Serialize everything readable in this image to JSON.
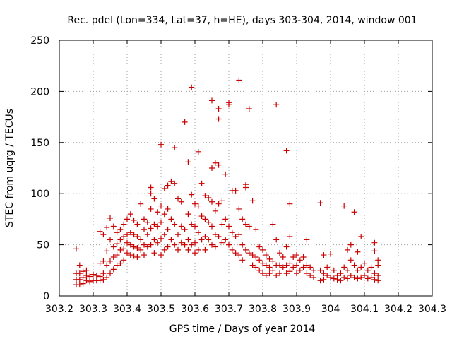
{
  "chart_data": {
    "type": "scatter",
    "title": "Rec. pdel (Lon=334, Lat=37, h=HE), days 303-304, 2014, window 001",
    "xlabel": "GPS time / Days of year 2014",
    "ylabel": "STEC from uqrg / TECUs",
    "xlim": [
      303.2,
      304.3
    ],
    "ylim": [
      0,
      250
    ],
    "xticks": [
      "303.2",
      "303.3",
      "303.4",
      "303.5",
      "303.6",
      "303.7",
      "303.8",
      "303.9",
      "304",
      "304.1",
      "304.2",
      "304.3"
    ],
    "yticks": [
      "0",
      "50",
      "100",
      "150",
      "200",
      "250"
    ],
    "grid": true,
    "marker": "plus",
    "series_color": "#cc0000",
    "series": [
      {
        "name": "STEC",
        "points": [
          [
            303.25,
            46
          ],
          [
            303.25,
            22
          ],
          [
            303.25,
            16
          ],
          [
            303.25,
            11
          ],
          [
            303.26,
            30
          ],
          [
            303.26,
            22
          ],
          [
            303.26,
            16
          ],
          [
            303.26,
            11
          ],
          [
            303.27,
            24
          ],
          [
            303.27,
            18
          ],
          [
            303.27,
            12
          ],
          [
            303.28,
            25
          ],
          [
            303.28,
            20
          ],
          [
            303.28,
            15
          ],
          [
            303.29,
            19
          ],
          [
            303.29,
            14
          ],
          [
            303.3,
            21
          ],
          [
            303.3,
            15
          ],
          [
            303.31,
            20
          ],
          [
            303.31,
            15
          ],
          [
            303.32,
            63
          ],
          [
            303.32,
            32
          ],
          [
            303.32,
            19
          ],
          [
            303.32,
            15
          ],
          [
            303.33,
            60
          ],
          [
            303.33,
            34
          ],
          [
            303.33,
            22
          ],
          [
            303.33,
            16
          ],
          [
            303.34,
            67
          ],
          [
            303.34,
            44
          ],
          [
            303.34,
            30
          ],
          [
            303.34,
            18
          ],
          [
            303.35,
            76
          ],
          [
            303.35,
            55
          ],
          [
            303.35,
            34
          ],
          [
            303.35,
            22
          ],
          [
            303.36,
            68
          ],
          [
            303.36,
            48
          ],
          [
            303.36,
            38
          ],
          [
            303.36,
            26
          ],
          [
            303.37,
            62
          ],
          [
            303.37,
            51
          ],
          [
            303.37,
            40
          ],
          [
            303.37,
            30
          ],
          [
            303.38,
            65
          ],
          [
            303.38,
            55
          ],
          [
            303.38,
            45
          ],
          [
            303.38,
            32
          ],
          [
            303.39,
            70
          ],
          [
            303.39,
            58
          ],
          [
            303.39,
            46
          ],
          [
            303.39,
            35
          ],
          [
            303.4,
            75
          ],
          [
            303.4,
            60
          ],
          [
            303.4,
            52
          ],
          [
            303.4,
            42
          ],
          [
            303.41,
            80
          ],
          [
            303.41,
            62
          ],
          [
            303.41,
            50
          ],
          [
            303.41,
            40
          ],
          [
            303.42,
            74
          ],
          [
            303.42,
            60
          ],
          [
            303.42,
            48
          ],
          [
            303.42,
            39
          ],
          [
            303.43,
            70
          ],
          [
            303.43,
            58
          ],
          [
            303.43,
            47
          ],
          [
            303.43,
            38
          ],
          [
            303.44,
            90
          ],
          [
            303.44,
            55
          ],
          [
            303.44,
            45
          ],
          [
            303.45,
            75
          ],
          [
            303.45,
            65
          ],
          [
            303.45,
            50
          ],
          [
            303.45,
            40
          ],
          [
            303.46,
            72
          ],
          [
            303.46,
            60
          ],
          [
            303.46,
            48
          ],
          [
            303.47,
            106
          ],
          [
            303.47,
            100
          ],
          [
            303.47,
            85
          ],
          [
            303.47,
            66
          ],
          [
            303.47,
            50
          ],
          [
            303.48,
            95
          ],
          [
            303.48,
            70
          ],
          [
            303.48,
            55
          ],
          [
            303.48,
            42
          ],
          [
            303.49,
            82
          ],
          [
            303.49,
            68
          ],
          [
            303.49,
            52
          ],
          [
            303.5,
            148
          ],
          [
            303.5,
            88
          ],
          [
            303.5,
            72
          ],
          [
            303.5,
            56
          ],
          [
            303.5,
            40
          ],
          [
            303.51,
            105
          ],
          [
            303.51,
            80
          ],
          [
            303.51,
            60
          ],
          [
            303.51,
            45
          ],
          [
            303.52,
            108
          ],
          [
            303.52,
            85
          ],
          [
            303.52,
            65
          ],
          [
            303.52,
            48
          ],
          [
            303.53,
            112
          ],
          [
            303.53,
            75
          ],
          [
            303.53,
            55
          ],
          [
            303.54,
            145
          ],
          [
            303.54,
            110
          ],
          [
            303.54,
            70
          ],
          [
            303.54,
            50
          ],
          [
            303.55,
            95
          ],
          [
            303.55,
            60
          ],
          [
            303.55,
            45
          ],
          [
            303.56,
            92
          ],
          [
            303.56,
            68
          ],
          [
            303.56,
            52
          ],
          [
            303.57,
            170
          ],
          [
            303.57,
            65
          ],
          [
            303.57,
            50
          ],
          [
            303.58,
            131
          ],
          [
            303.58,
            80
          ],
          [
            303.58,
            55
          ],
          [
            303.58,
            45
          ],
          [
            303.59,
            204
          ],
          [
            303.59,
            99
          ],
          [
            303.59,
            70
          ],
          [
            303.59,
            50
          ],
          [
            303.6,
            90
          ],
          [
            303.6,
            68
          ],
          [
            303.6,
            52
          ],
          [
            303.6,
            42
          ],
          [
            303.61,
            141
          ],
          [
            303.61,
            88
          ],
          [
            303.61,
            62
          ],
          [
            303.61,
            45
          ],
          [
            303.62,
            110
          ],
          [
            303.62,
            78
          ],
          [
            303.62,
            55
          ],
          [
            303.63,
            98
          ],
          [
            303.63,
            75
          ],
          [
            303.63,
            58
          ],
          [
            303.63,
            45
          ],
          [
            303.64,
            96
          ],
          [
            303.64,
            72
          ],
          [
            303.64,
            55
          ],
          [
            303.65,
            191
          ],
          [
            303.65,
            125
          ],
          [
            303.65,
            92
          ],
          [
            303.65,
            68
          ],
          [
            303.65,
            50
          ],
          [
            303.66,
            130
          ],
          [
            303.66,
            83
          ],
          [
            303.66,
            60
          ],
          [
            303.66,
            48
          ],
          [
            303.67,
            183
          ],
          [
            303.67,
            173
          ],
          [
            303.67,
            128
          ],
          [
            303.67,
            90
          ],
          [
            303.67,
            58
          ],
          [
            303.68,
            93
          ],
          [
            303.68,
            70
          ],
          [
            303.68,
            52
          ],
          [
            303.69,
            119
          ],
          [
            303.69,
            75
          ],
          [
            303.69,
            55
          ],
          [
            303.7,
            189
          ],
          [
            303.7,
            187
          ],
          [
            303.7,
            68
          ],
          [
            303.7,
            50
          ],
          [
            303.71,
            103
          ],
          [
            303.71,
            62
          ],
          [
            303.71,
            45
          ],
          [
            303.72,
            103
          ],
          [
            303.72,
            58
          ],
          [
            303.72,
            42
          ],
          [
            303.73,
            211
          ],
          [
            303.73,
            85
          ],
          [
            303.73,
            60
          ],
          [
            303.73,
            40
          ],
          [
            303.74,
            75
          ],
          [
            303.74,
            50
          ],
          [
            303.74,
            35
          ],
          [
            303.75,
            109
          ],
          [
            303.75,
            106
          ],
          [
            303.75,
            70
          ],
          [
            303.75,
            45
          ],
          [
            303.76,
            183
          ],
          [
            303.76,
            68
          ],
          [
            303.76,
            42
          ],
          [
            303.77,
            93
          ],
          [
            303.77,
            40
          ],
          [
            303.77,
            30
          ],
          [
            303.78,
            65
          ],
          [
            303.78,
            38
          ],
          [
            303.78,
            28
          ],
          [
            303.79,
            48
          ],
          [
            303.79,
            35
          ],
          [
            303.79,
            25
          ],
          [
            303.8,
            45
          ],
          [
            303.8,
            32
          ],
          [
            303.8,
            22
          ],
          [
            303.81,
            40
          ],
          [
            303.81,
            30
          ],
          [
            303.81,
            20
          ],
          [
            303.82,
            36
          ],
          [
            303.82,
            28
          ],
          [
            303.82,
            22
          ],
          [
            303.83,
            70
          ],
          [
            303.83,
            34
          ],
          [
            303.83,
            25
          ],
          [
            303.84,
            187
          ],
          [
            303.84,
            55
          ],
          [
            303.84,
            30
          ],
          [
            303.84,
            20
          ],
          [
            303.85,
            42
          ],
          [
            303.85,
            30
          ],
          [
            303.85,
            22
          ],
          [
            303.86,
            38
          ],
          [
            303.86,
            28
          ],
          [
            303.87,
            142
          ],
          [
            303.87,
            48
          ],
          [
            303.87,
            30
          ],
          [
            303.87,
            22
          ],
          [
            303.88,
            90
          ],
          [
            303.88,
            58
          ],
          [
            303.88,
            32
          ],
          [
            303.88,
            24
          ],
          [
            303.89,
            38
          ],
          [
            303.89,
            28
          ],
          [
            303.9,
            40
          ],
          [
            303.9,
            30
          ],
          [
            303.9,
            22
          ],
          [
            303.91,
            35
          ],
          [
            303.91,
            25
          ],
          [
            303.92,
            38
          ],
          [
            303.92,
            28
          ],
          [
            303.93,
            55
          ],
          [
            303.93,
            30
          ],
          [
            303.93,
            22
          ],
          [
            303.94,
            28
          ],
          [
            303.94,
            20
          ],
          [
            303.95,
            25
          ],
          [
            303.95,
            18
          ],
          [
            303.97,
            91
          ],
          [
            303.97,
            25
          ],
          [
            303.97,
            15
          ],
          [
            303.98,
            40
          ],
          [
            303.98,
            22
          ],
          [
            303.98,
            16
          ],
          [
            303.99,
            28
          ],
          [
            303.99,
            20
          ],
          [
            304.0,
            41
          ],
          [
            304.0,
            18
          ],
          [
            304.01,
            25
          ],
          [
            304.01,
            17
          ],
          [
            304.02,
            20
          ],
          [
            304.02,
            16
          ],
          [
            304.03,
            22
          ],
          [
            304.03,
            15
          ],
          [
            304.04,
            88
          ],
          [
            304.04,
            28
          ],
          [
            304.04,
            18
          ],
          [
            304.05,
            45
          ],
          [
            304.05,
            25
          ],
          [
            304.05,
            17
          ],
          [
            304.06,
            50
          ],
          [
            304.06,
            35
          ],
          [
            304.06,
            20
          ],
          [
            304.07,
            82
          ],
          [
            304.07,
            30
          ],
          [
            304.07,
            18
          ],
          [
            304.08,
            43
          ],
          [
            304.08,
            25
          ],
          [
            304.08,
            17
          ],
          [
            304.09,
            58
          ],
          [
            304.09,
            28
          ],
          [
            304.09,
            18
          ],
          [
            304.1,
            32
          ],
          [
            304.1,
            20
          ],
          [
            304.11,
            25
          ],
          [
            304.11,
            17
          ],
          [
            304.12,
            28
          ],
          [
            304.12,
            18
          ],
          [
            304.13,
            52
          ],
          [
            304.13,
            44
          ],
          [
            304.13,
            22
          ],
          [
            304.13,
            16
          ],
          [
            304.14,
            35
          ],
          [
            304.14,
            30
          ],
          [
            304.14,
            20
          ],
          [
            304.14,
            15
          ]
        ]
      }
    ]
  }
}
